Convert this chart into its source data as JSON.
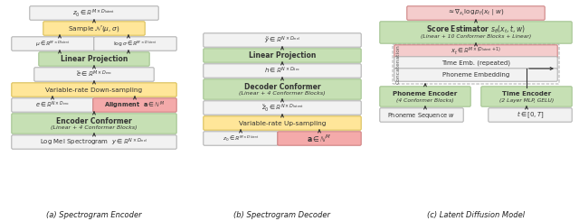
{
  "fig_width": 6.4,
  "fig_height": 2.45,
  "dpi": 100,
  "bg_color": "#ffffff",
  "colors": {
    "green_fill": "#c6e0b4",
    "green_edge": "#9dbe8a",
    "yellow_fill": "#ffe699",
    "yellow_edge": "#d4b84a",
    "red_fill": "#f4aaaa",
    "red_edge": "#c97878",
    "gray_fill": "#f2f2f2",
    "gray_edge": "#aaaaaa",
    "pink_fill": "#f4cccc",
    "pink_edge": "#c97878",
    "arrow_color": "#333333"
  },
  "caption_a": "(a) Spectrogram Encoder",
  "caption_b": "(b) Spectrogram Decoder",
  "caption_c": "(c) Latent Diffusion Model"
}
